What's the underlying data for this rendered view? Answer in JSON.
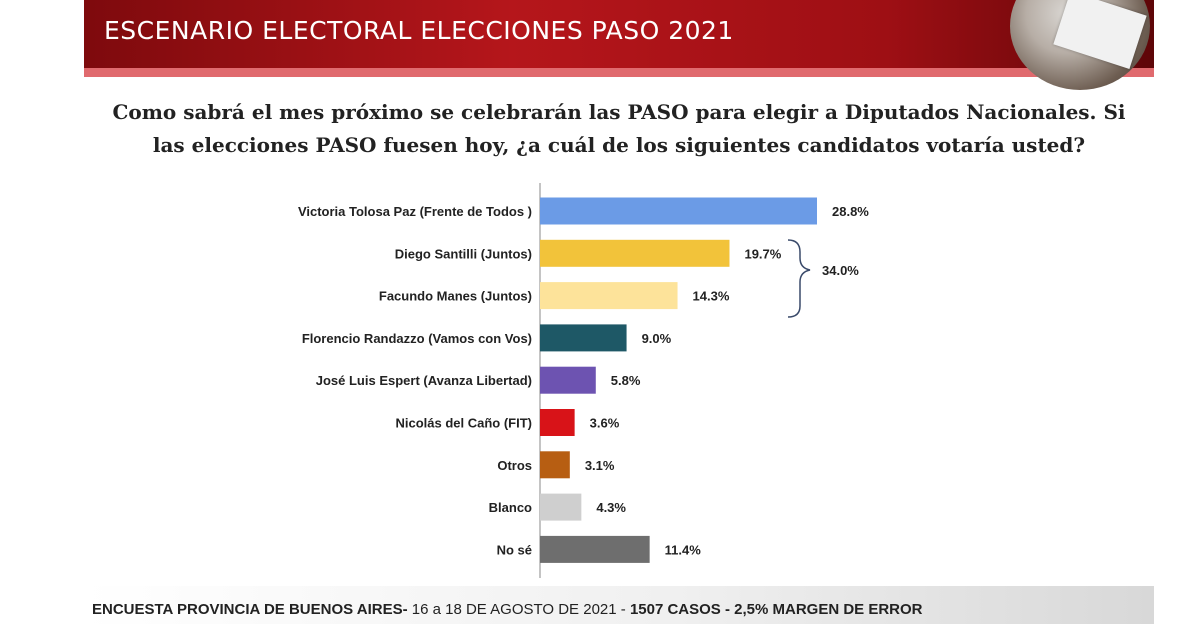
{
  "header": {
    "title": "ESCENARIO ELECTORAL ELECCIONES PASO 2021"
  },
  "question": {
    "line1": "Como sabrá el mes próximo se celebrarán las PASO para elegir a Diputados Nacionales. Si",
    "line2": "las elecciones PASO fuesen hoy, ¿a cuál de los siguientes candidatos votaría usted?"
  },
  "chart_data": {
    "type": "bar",
    "orientation": "horizontal",
    "categories": [
      "Victoria Tolosa Paz (Frente de Todos )",
      "Diego Santilli (Juntos)",
      "Facundo Manes (Juntos)",
      "Florencio Randazzo (Vamos con Vos)",
      "José Luis Espert (Avanza Libertad)",
      "Nicolás del Caño (FIT)",
      "Otros",
      "Blanco",
      "No sé"
    ],
    "values": [
      28.8,
      19.7,
      14.3,
      9.0,
      5.8,
      3.6,
      3.1,
      4.3,
      11.4
    ],
    "value_labels": [
      "28.8%",
      "19.7%",
      "14.3%",
      "9.0%",
      "5.8%",
      "3.6%",
      "3.1%",
      "4.3%",
      "11.4%"
    ],
    "colors": [
      "#6b9be6",
      "#f2c33a",
      "#fde39a",
      "#1e5866",
      "#6d53b1",
      "#d81318",
      "#b75e12",
      "#cfcfcf",
      "#6e6e6e"
    ],
    "xlim": [
      0,
      30
    ],
    "grid": false,
    "legend": "none",
    "annotation": {
      "label": "34.0%",
      "spans": [
        "Diego Santilli (Juntos)",
        "Facundo Manes (Juntos)"
      ]
    }
  },
  "footer": {
    "bold1": "ENCUESTA PROVINCIA DE BUENOS AIRES-",
    "normal": " 16 a 18 DE AGOSTO DE 2021 - ",
    "bold2": "1507 CASOS - 2,5% MARGEN DE ERROR"
  }
}
